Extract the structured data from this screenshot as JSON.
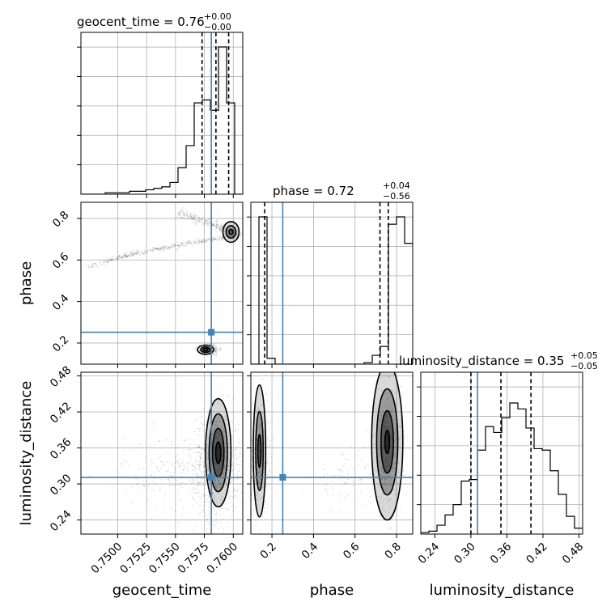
{
  "colors": {
    "truth": "#4682b4",
    "hist": "#000000",
    "grid": "#b0b0b0",
    "density": "#000000"
  },
  "chart_data": {
    "type": "corner",
    "parameters": [
      "geocent_time",
      "phase",
      "luminosity_distance"
    ],
    "titles": [
      {
        "text": "geocent_time = 0.76",
        "sup": "+0.00",
        "sub": "−0.00"
      },
      {
        "text": "phase = 0.72",
        "sup": "+0.04",
        "sub": "−0.56"
      },
      {
        "text": "luminosity_distance = 0.35",
        "sup": "+0.05",
        "sub": "−0.05"
      }
    ],
    "axis_labels": {
      "x": [
        "geocent_time",
        "phase",
        "luminosity_distance"
      ],
      "y": [
        "phase",
        "luminosity_distance"
      ]
    },
    "ranges": {
      "geocent_time": [
        0.74682,
        0.76082
      ],
      "phase": [
        0.0985,
        0.8776
      ],
      "luminosity_distance": [
        0.2165,
        0.4861
      ]
    },
    "ticks": {
      "geocent_time": [
        "0.7500",
        "0.7525",
        "0.7550",
        "0.7575",
        "0.7600"
      ],
      "phase": [
        "0.2",
        "0.4",
        "0.6",
        "0.8"
      ],
      "luminosity_distance": [
        "0.24",
        "0.30",
        "0.36",
        "0.42",
        "0.48"
      ]
    },
    "truths": {
      "geocent_time": 0.7581,
      "phase": 0.252,
      "luminosity_distance": 0.311
    },
    "quantiles": {
      "geocent_time": [
        0.7573,
        0.7585,
        0.7596
      ],
      "phase": [
        0.165,
        0.72,
        0.76
      ],
      "luminosity_distance": [
        0.3,
        0.35,
        0.4
      ]
    },
    "histograms": [
      {
        "parameter": "geocent_time",
        "edges_start": 0.74682,
        "bin_width": 0.0007,
        "counts": [
          0,
          0,
          0,
          1,
          1,
          1,
          2,
          2,
          3,
          4,
          5,
          8,
          18,
          33,
          62,
          64,
          57,
          100,
          62,
          0
        ]
      },
      {
        "parameter": "phase",
        "edges_start": 0.0985,
        "bin_width": 0.03896,
        "counts": [
          0,
          100,
          4,
          0,
          0,
          0,
          0,
          0,
          0,
          0,
          0,
          0,
          0,
          0,
          1,
          6,
          12,
          95,
          100,
          82
        ]
      },
      {
        "parameter": "luminosity_distance",
        "edges_start": 0.2165,
        "bin_width": 0.01348,
        "counts": [
          1,
          2,
          6,
          13,
          20,
          36,
          37,
          57,
          73,
          69,
          79,
          89,
          85,
          72,
          58,
          57,
          43,
          27,
          12,
          4
        ]
      }
    ]
  }
}
